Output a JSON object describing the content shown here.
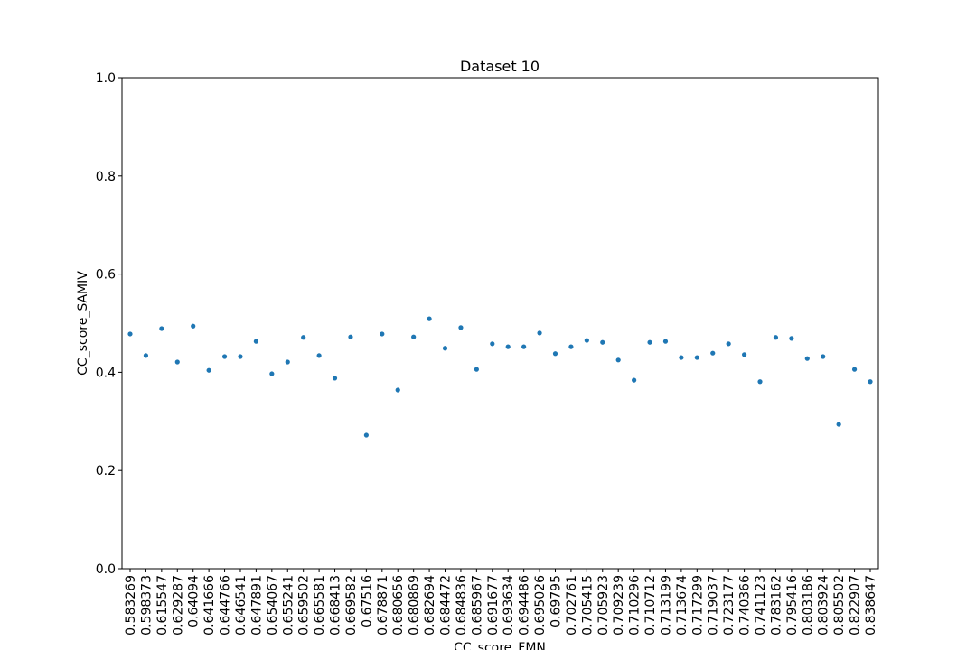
{
  "chart_data": {
    "type": "scatter",
    "title": "Dataset 10",
    "xlabel": "CC_score_FMN",
    "ylabel": "CC_score_SAMIV",
    "categories": [
      "0.583269",
      "0.598373",
      "0.615547",
      "0.629287",
      "0.64094",
      "0.641666",
      "0.644766",
      "0.646541",
      "0.647891",
      "0.654067",
      "0.655241",
      "0.659502",
      "0.665581",
      "0.668413",
      "0.669582",
      "0.67516",
      "0.678871",
      "0.680656",
      "0.680869",
      "0.682694",
      "0.684472",
      "0.684836",
      "0.685967",
      "0.691677",
      "0.693634",
      "0.694486",
      "0.695026",
      "0.69795",
      "0.702761",
      "0.705415",
      "0.705923",
      "0.709239",
      "0.710296",
      "0.710712",
      "0.713199",
      "0.713674",
      "0.717299",
      "0.719037",
      "0.723177",
      "0.740366",
      "0.741123",
      "0.783162",
      "0.795416",
      "0.803186",
      "0.803924",
      "0.805502",
      "0.822907",
      "0.838647"
    ],
    "values": [
      0.478,
      0.434,
      0.489,
      0.421,
      0.494,
      0.404,
      0.432,
      0.432,
      0.463,
      0.397,
      0.421,
      0.471,
      0.434,
      0.388,
      0.472,
      0.272,
      0.478,
      0.364,
      0.472,
      0.509,
      0.449,
      0.491,
      0.406,
      0.458,
      0.452,
      0.452,
      0.48,
      0.438,
      0.452,
      0.465,
      0.461,
      0.425,
      0.384,
      0.461,
      0.463,
      0.43,
      0.43,
      0.439,
      0.458,
      0.436,
      0.381,
      0.471,
      0.469,
      0.428,
      0.432,
      0.294,
      0.406,
      0.381
    ],
    "color": "#1f77b4",
    "ylim": [
      0,
      1
    ],
    "yticks": [
      {
        "value": 0,
        "label": "0.0"
      },
      {
        "value": 0.2,
        "label": "0.2"
      },
      {
        "value": 0.4,
        "label": "0.4"
      },
      {
        "value": 0.6,
        "label": "0.6"
      },
      {
        "value": 0.8,
        "label": "0.8"
      },
      {
        "value": 1,
        "label": "1.0"
      }
    ],
    "grid": false
  }
}
